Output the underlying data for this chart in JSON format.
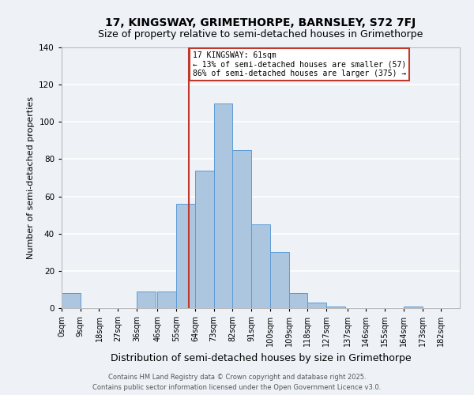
{
  "title": "17, KINGSWAY, GRIMETHORPE, BARNSLEY, S72 7FJ",
  "subtitle": "Size of property relative to semi-detached houses in Grimethorpe",
  "xlabel": "Distribution of semi-detached houses by size in Grimethorpe",
  "ylabel": "Number of semi-detached properties",
  "bin_labels": [
    "0sqm",
    "9sqm",
    "18sqm",
    "27sqm",
    "36sqm",
    "46sqm",
    "55sqm",
    "64sqm",
    "73sqm",
    "82sqm",
    "91sqm",
    "100sqm",
    "109sqm",
    "118sqm",
    "127sqm",
    "137sqm",
    "146sqm",
    "155sqm",
    "164sqm",
    "173sqm",
    "182sqm"
  ],
  "bin_edges": [
    0,
    9,
    18,
    27,
    36,
    46,
    55,
    64,
    73,
    82,
    91,
    100,
    109,
    118,
    127,
    137,
    146,
    155,
    164,
    173,
    182
  ],
  "bar_heights": [
    8,
    0,
    0,
    0,
    9,
    9,
    56,
    74,
    110,
    85,
    45,
    30,
    8,
    3,
    1,
    0,
    0,
    0,
    1,
    0,
    0
  ],
  "bar_color": "#adc6e0",
  "bar_edge_color": "#5b9bd5",
  "property_value": 61,
  "vline_color": "#c0392b",
  "annotation_text": "17 KINGSWAY: 61sqm\n← 13% of semi-detached houses are smaller (57)\n86% of semi-detached houses are larger (375) →",
  "annotation_box_color": "#c0392b",
  "ylim": [
    0,
    140
  ],
  "footer_text": "Contains HM Land Registry data © Crown copyright and database right 2025.\nContains public sector information licensed under the Open Government Licence v3.0.",
  "background_color": "#eef2f7",
  "grid_color": "#ffffff",
  "title_fontsize": 10,
  "subtitle_fontsize": 9,
  "xlabel_fontsize": 9,
  "ylabel_fontsize": 8,
  "tick_fontsize": 7,
  "footer_fontsize": 6,
  "annotation_fontsize": 7
}
